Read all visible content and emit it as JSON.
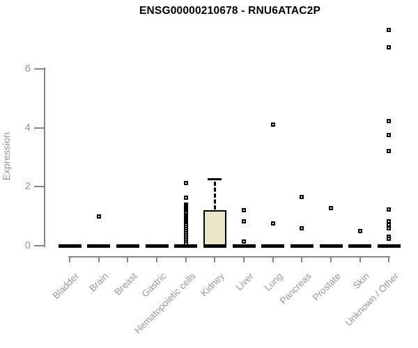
{
  "chart_data": {
    "type": "boxplot",
    "title": "ENSG00000210678 - RNU6ATAC2P",
    "ylabel": "Expression",
    "xlabel": "",
    "yticks": [
      0,
      2,
      4,
      6
    ],
    "ylim": [
      0,
      7.5
    ],
    "grid": false,
    "legend": "none",
    "categories": [
      "Bladder",
      "Brain",
      "Breast",
      "Gastric",
      "Hematopoietic cells",
      "Kidney",
      "Liver",
      "Lung",
      "Pancreas",
      "Prostate",
      "Skin",
      "Unknown / Other"
    ],
    "series": [
      {
        "category": "Bladder",
        "q1": 0,
        "median": 0,
        "q3": 0,
        "whisker_low": 0,
        "whisker_high": 0,
        "outliers": []
      },
      {
        "category": "Brain",
        "q1": 0,
        "median": 0,
        "q3": 0,
        "whisker_low": 0,
        "whisker_high": 0,
        "outliers": [
          1.0
        ]
      },
      {
        "category": "Breast",
        "q1": 0,
        "median": 0,
        "q3": 0,
        "whisker_low": 0,
        "whisker_high": 0,
        "outliers": []
      },
      {
        "category": "Gastric",
        "q1": 0,
        "median": 0,
        "q3": 0,
        "whisker_low": 0,
        "whisker_high": 0,
        "outliers": []
      },
      {
        "category": "Hematopoietic cells",
        "q1": 0,
        "median": 0,
        "q3": 0,
        "whisker_low": 0,
        "whisker_high": 0,
        "outliers": [
          2.13,
          1.64,
          1.4,
          1.35,
          1.3,
          1.25,
          1.2,
          1.15,
          1.1,
          1.05,
          1.0,
          0.95,
          0.9,
          0.85,
          0.8,
          0.75,
          0.7,
          0.64,
          0.57,
          0.5,
          0.43,
          0.36,
          0.29,
          0.22,
          0.15,
          0.08
        ]
      },
      {
        "category": "Kidney",
        "q1": 0,
        "median": 0,
        "q3": 1.2,
        "whisker_low": 0,
        "whisker_high": 2.25,
        "outliers": []
      },
      {
        "category": "Liver",
        "q1": 0,
        "median": 0,
        "q3": 0,
        "whisker_low": 0,
        "whisker_high": 0,
        "outliers": [
          1.21,
          0.82,
          0.13
        ]
      },
      {
        "category": "Lung",
        "q1": 0,
        "median": 0,
        "q3": 0,
        "whisker_low": 0,
        "whisker_high": 0,
        "outliers": [
          4.1,
          0.75
        ]
      },
      {
        "category": "Pancreas",
        "q1": 0,
        "median": 0,
        "q3": 0,
        "whisker_low": 0,
        "whisker_high": 0,
        "outliers": [
          1.65,
          0.58
        ]
      },
      {
        "category": "Prostate",
        "q1": 0,
        "median": 0,
        "q3": 0,
        "whisker_low": 0,
        "whisker_high": 0,
        "outliers": [
          1.28
        ]
      },
      {
        "category": "Skin",
        "q1": 0,
        "median": 0,
        "q3": 0,
        "whisker_low": 0,
        "whisker_high": 0,
        "outliers": [
          0.5
        ]
      },
      {
        "category": "Unknown / Other",
        "q1": 0,
        "median": 0,
        "q3": 0,
        "whisker_low": 0,
        "whisker_high": 0,
        "outliers": [
          7.33,
          6.74,
          4.24,
          3.75,
          3.22,
          1.24,
          0.83,
          0.7,
          0.6,
          0.3,
          0.24
        ]
      }
    ],
    "colors": {
      "box_fill": "#ece6c9",
      "box_stroke": "#000000",
      "marker": "#000000",
      "axis": "#878787",
      "tick_label": "#979797",
      "title": "#000000"
    }
  }
}
